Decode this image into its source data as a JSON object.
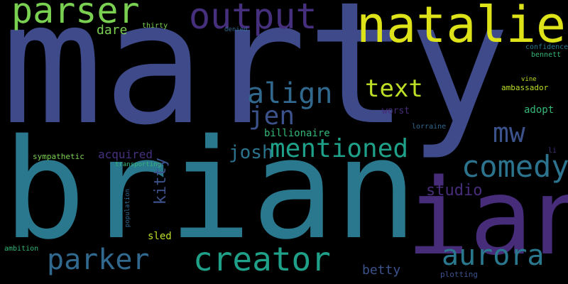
{
  "background": "#000000",
  "words": {
    "marty": "marty",
    "brian": "brian",
    "ian": "ian",
    "natalie": "natalie",
    "output": "output",
    "parser": "parser",
    "comedy": "comedy",
    "creator": "creator",
    "parker": "parker",
    "aurora": "aurora",
    "mentioned": "mentioned",
    "align": "align",
    "text": "text",
    "mw": "mw",
    "jen": "jen",
    "josh": "josh",
    "dare": "dare",
    "kitty": "kitty",
    "studio": "studio",
    "betty": "betty",
    "billionaire": "billionaire",
    "acquired": "acquired",
    "sympathetic": "sympathetic",
    "adopt": "adopt",
    "ambassador": "ambassador",
    "worst": "worst",
    "sled": "sled",
    "plotting": "plotting",
    "lorraine": "lorraine",
    "confidence": "confidence",
    "bennett": "bennett",
    "thirty": "thirty",
    "ambition": "ambition",
    "transporting": "transporting",
    "population": "population",
    "vine": "vine",
    "li": "li",
    "denied": "denied"
  },
  "colors": {
    "indigo": "#3e4a89",
    "lime": "#bddf26",
    "yellow": "#dde318",
    "green": "#7ad151",
    "teal": "#2c738e",
    "teal2": "#2a788e",
    "violet": "#472c7a",
    "purple": "#46307e",
    "seagreen": "#1fa088",
    "lightgreen": "#35b779",
    "darkblue": "#31688e",
    "steel": "#3b528b"
  }
}
